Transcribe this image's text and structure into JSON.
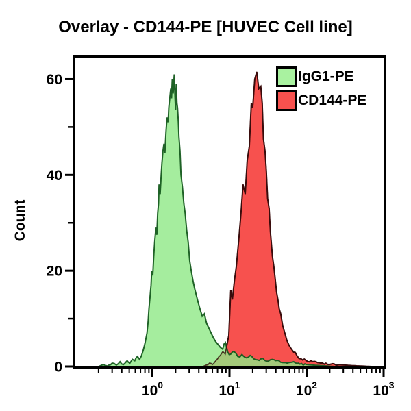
{
  "chart_data": {
    "type": "area",
    "subtype": "flow-cytometry-histogram-overlay",
    "title": "Overlay - CD144-PE [HUVEC Cell line]",
    "xlabel": "",
    "ylabel": "Count",
    "x_scale": "log",
    "x_range": [
      0.1,
      1000
    ],
    "y_range": [
      0,
      64.5
    ],
    "x_tick_base": 10,
    "x_tick_exponents": [
      0,
      1,
      2,
      3
    ],
    "y_ticks": [
      0,
      20,
      40,
      60
    ],
    "y_minor_ticks": [
      10,
      30,
      50
    ],
    "grid": "off",
    "legend_position": "top-right-inside",
    "frame_color": "#000000",
    "legend": [
      {
        "label": "IgG1-PE",
        "color": "#a9f2a0"
      },
      {
        "label": "CD144-PE",
        "color": "#f7514e"
      }
    ],
    "series": [
      {
        "name": "IgG1-PE",
        "fill": "#8fe886",
        "fill_opacity": 0.8,
        "stroke": "#155a1e",
        "points": [
          [
            0.2,
            0
          ],
          [
            0.23,
            0.4
          ],
          [
            0.26,
            0.1
          ],
          [
            0.3,
            0.7
          ],
          [
            0.34,
            0.3
          ],
          [
            0.38,
            1.0
          ],
          [
            0.42,
            0.4
          ],
          [
            0.47,
            1.2
          ],
          [
            0.51,
            0.7
          ],
          [
            0.55,
            1.5
          ],
          [
            0.59,
            1.2
          ],
          [
            0.64,
            2.1
          ],
          [
            0.68,
            1.5
          ],
          [
            0.72,
            2.2
          ],
          [
            0.76,
            3.4
          ],
          [
            0.8,
            4.8
          ],
          [
            0.85,
            7
          ],
          [
            0.88,
            9.5
          ],
          [
            0.9,
            12
          ],
          [
            0.93,
            14.5
          ],
          [
            0.96,
            17
          ],
          [
            0.98,
            20
          ],
          [
            1.01,
            19
          ],
          [
            1.04,
            23
          ],
          [
            1.07,
            26
          ],
          [
            1.11,
            29
          ],
          [
            1.14,
            27.5
          ],
          [
            1.17,
            32
          ],
          [
            1.2,
            34
          ],
          [
            1.22,
            38
          ],
          [
            1.26,
            36
          ],
          [
            1.3,
            40
          ],
          [
            1.33,
            42.5
          ],
          [
            1.37,
            45
          ],
          [
            1.41,
            46.5
          ],
          [
            1.45,
            44.5
          ],
          [
            1.5,
            49
          ],
          [
            1.55,
            52
          ],
          [
            1.6,
            51
          ],
          [
            1.63,
            54
          ],
          [
            1.68,
            56
          ],
          [
            1.73,
            58
          ],
          [
            1.77,
            56
          ],
          [
            1.81,
            60
          ],
          [
            1.86,
            57
          ],
          [
            1.92,
            61
          ],
          [
            1.97,
            56
          ],
          [
            2.0,
            53.5
          ],
          [
            2.04,
            59
          ],
          [
            2.08,
            55
          ],
          [
            2.12,
            54
          ],
          [
            2.17,
            51
          ],
          [
            2.21,
            48
          ],
          [
            2.28,
            45
          ],
          [
            2.35,
            40
          ],
          [
            2.45,
            37.5
          ],
          [
            2.56,
            34
          ],
          [
            2.66,
            32
          ],
          [
            2.78,
            28.5
          ],
          [
            2.91,
            26
          ],
          [
            3.05,
            22
          ],
          [
            3.19,
            20
          ],
          [
            3.35,
            18
          ],
          [
            3.51,
            16.5
          ],
          [
            3.7,
            15
          ],
          [
            3.91,
            13.5
          ],
          [
            4.15,
            12
          ],
          [
            4.43,
            10.5
          ],
          [
            4.73,
            11
          ],
          [
            5.05,
            9
          ],
          [
            5.4,
            8
          ],
          [
            5.78,
            7
          ],
          [
            6.18,
            6
          ],
          [
            6.62,
            5.2
          ],
          [
            7.1,
            4.6
          ],
          [
            7.6,
            4
          ],
          [
            8.16,
            3.6
          ],
          [
            8.86,
            5
          ],
          [
            9.5,
            3
          ],
          [
            10.4,
            2.6
          ],
          [
            11.5,
            3.1
          ],
          [
            12.8,
            2.1
          ],
          [
            14.5,
            2.5
          ],
          [
            16.8,
            1.8
          ],
          [
            19.5,
            2.1
          ],
          [
            23,
            1.4
          ],
          [
            27,
            1.7
          ],
          [
            32,
            1.1
          ],
          [
            38,
            1.4
          ],
          [
            46,
            0.9
          ],
          [
            56,
            0.7
          ],
          [
            68,
            1.0
          ],
          [
            82,
            0.5
          ],
          [
            100,
            0.4
          ],
          [
            130,
            0.25
          ],
          [
            170,
            0.15
          ],
          [
            230,
            0
          ]
        ]
      },
      {
        "name": "CD144-PE",
        "fill": "#f7514e",
        "fill_opacity": 1,
        "stroke": "#3a0c0c",
        "points": [
          [
            4.5,
            0
          ],
          [
            5.0,
            0.3
          ],
          [
            5.5,
            0.7
          ],
          [
            6.0,
            0.4
          ],
          [
            6.5,
            1.0
          ],
          [
            7.0,
            1.6
          ],
          [
            7.6,
            2.3
          ],
          [
            8.2,
            3.1
          ],
          [
            8.8,
            2.6
          ],
          [
            9.2,
            4.2
          ],
          [
            9.8,
            6.5
          ],
          [
            10.4,
            16
          ],
          [
            10.9,
            14
          ],
          [
            11.6,
            18
          ],
          [
            12.3,
            21
          ],
          [
            13.3,
            27
          ],
          [
            14.1,
            32
          ],
          [
            15.0,
            38
          ],
          [
            16.0,
            36
          ],
          [
            17.0,
            43
          ],
          [
            18.1,
            46
          ],
          [
            19.2,
            55
          ],
          [
            20.0,
            54
          ],
          [
            21.3,
            60
          ],
          [
            22.6,
            61.5
          ],
          [
            24.0,
            58
          ],
          [
            25.5,
            58.5
          ],
          [
            26.6,
            55
          ],
          [
            27.6,
            47.5
          ],
          [
            28.9,
            45
          ],
          [
            30.0,
            41
          ],
          [
            31.3,
            35
          ],
          [
            32.7,
            33
          ],
          [
            34.0,
            28
          ],
          [
            36.1,
            23
          ],
          [
            37.6,
            21
          ],
          [
            39.1,
            18.5
          ],
          [
            40.9,
            15.5
          ],
          [
            42.5,
            14
          ],
          [
            44.3,
            12
          ],
          [
            46.2,
            11
          ],
          [
            49.1,
            8.5
          ],
          [
            52.3,
            7
          ],
          [
            55.5,
            5.5
          ],
          [
            59,
            4.5
          ],
          [
            62.7,
            3.8
          ],
          [
            67.9,
            3
          ],
          [
            75.4,
            2.2
          ],
          [
            85,
            1.6
          ],
          [
            98,
            1.3
          ],
          [
            120,
            1.0
          ],
          [
            153,
            0.7
          ],
          [
            208,
            0.5
          ],
          [
            282,
            0.35
          ],
          [
            385,
            0.2
          ],
          [
            520,
            0.1
          ],
          [
            700,
            0
          ]
        ]
      }
    ]
  }
}
